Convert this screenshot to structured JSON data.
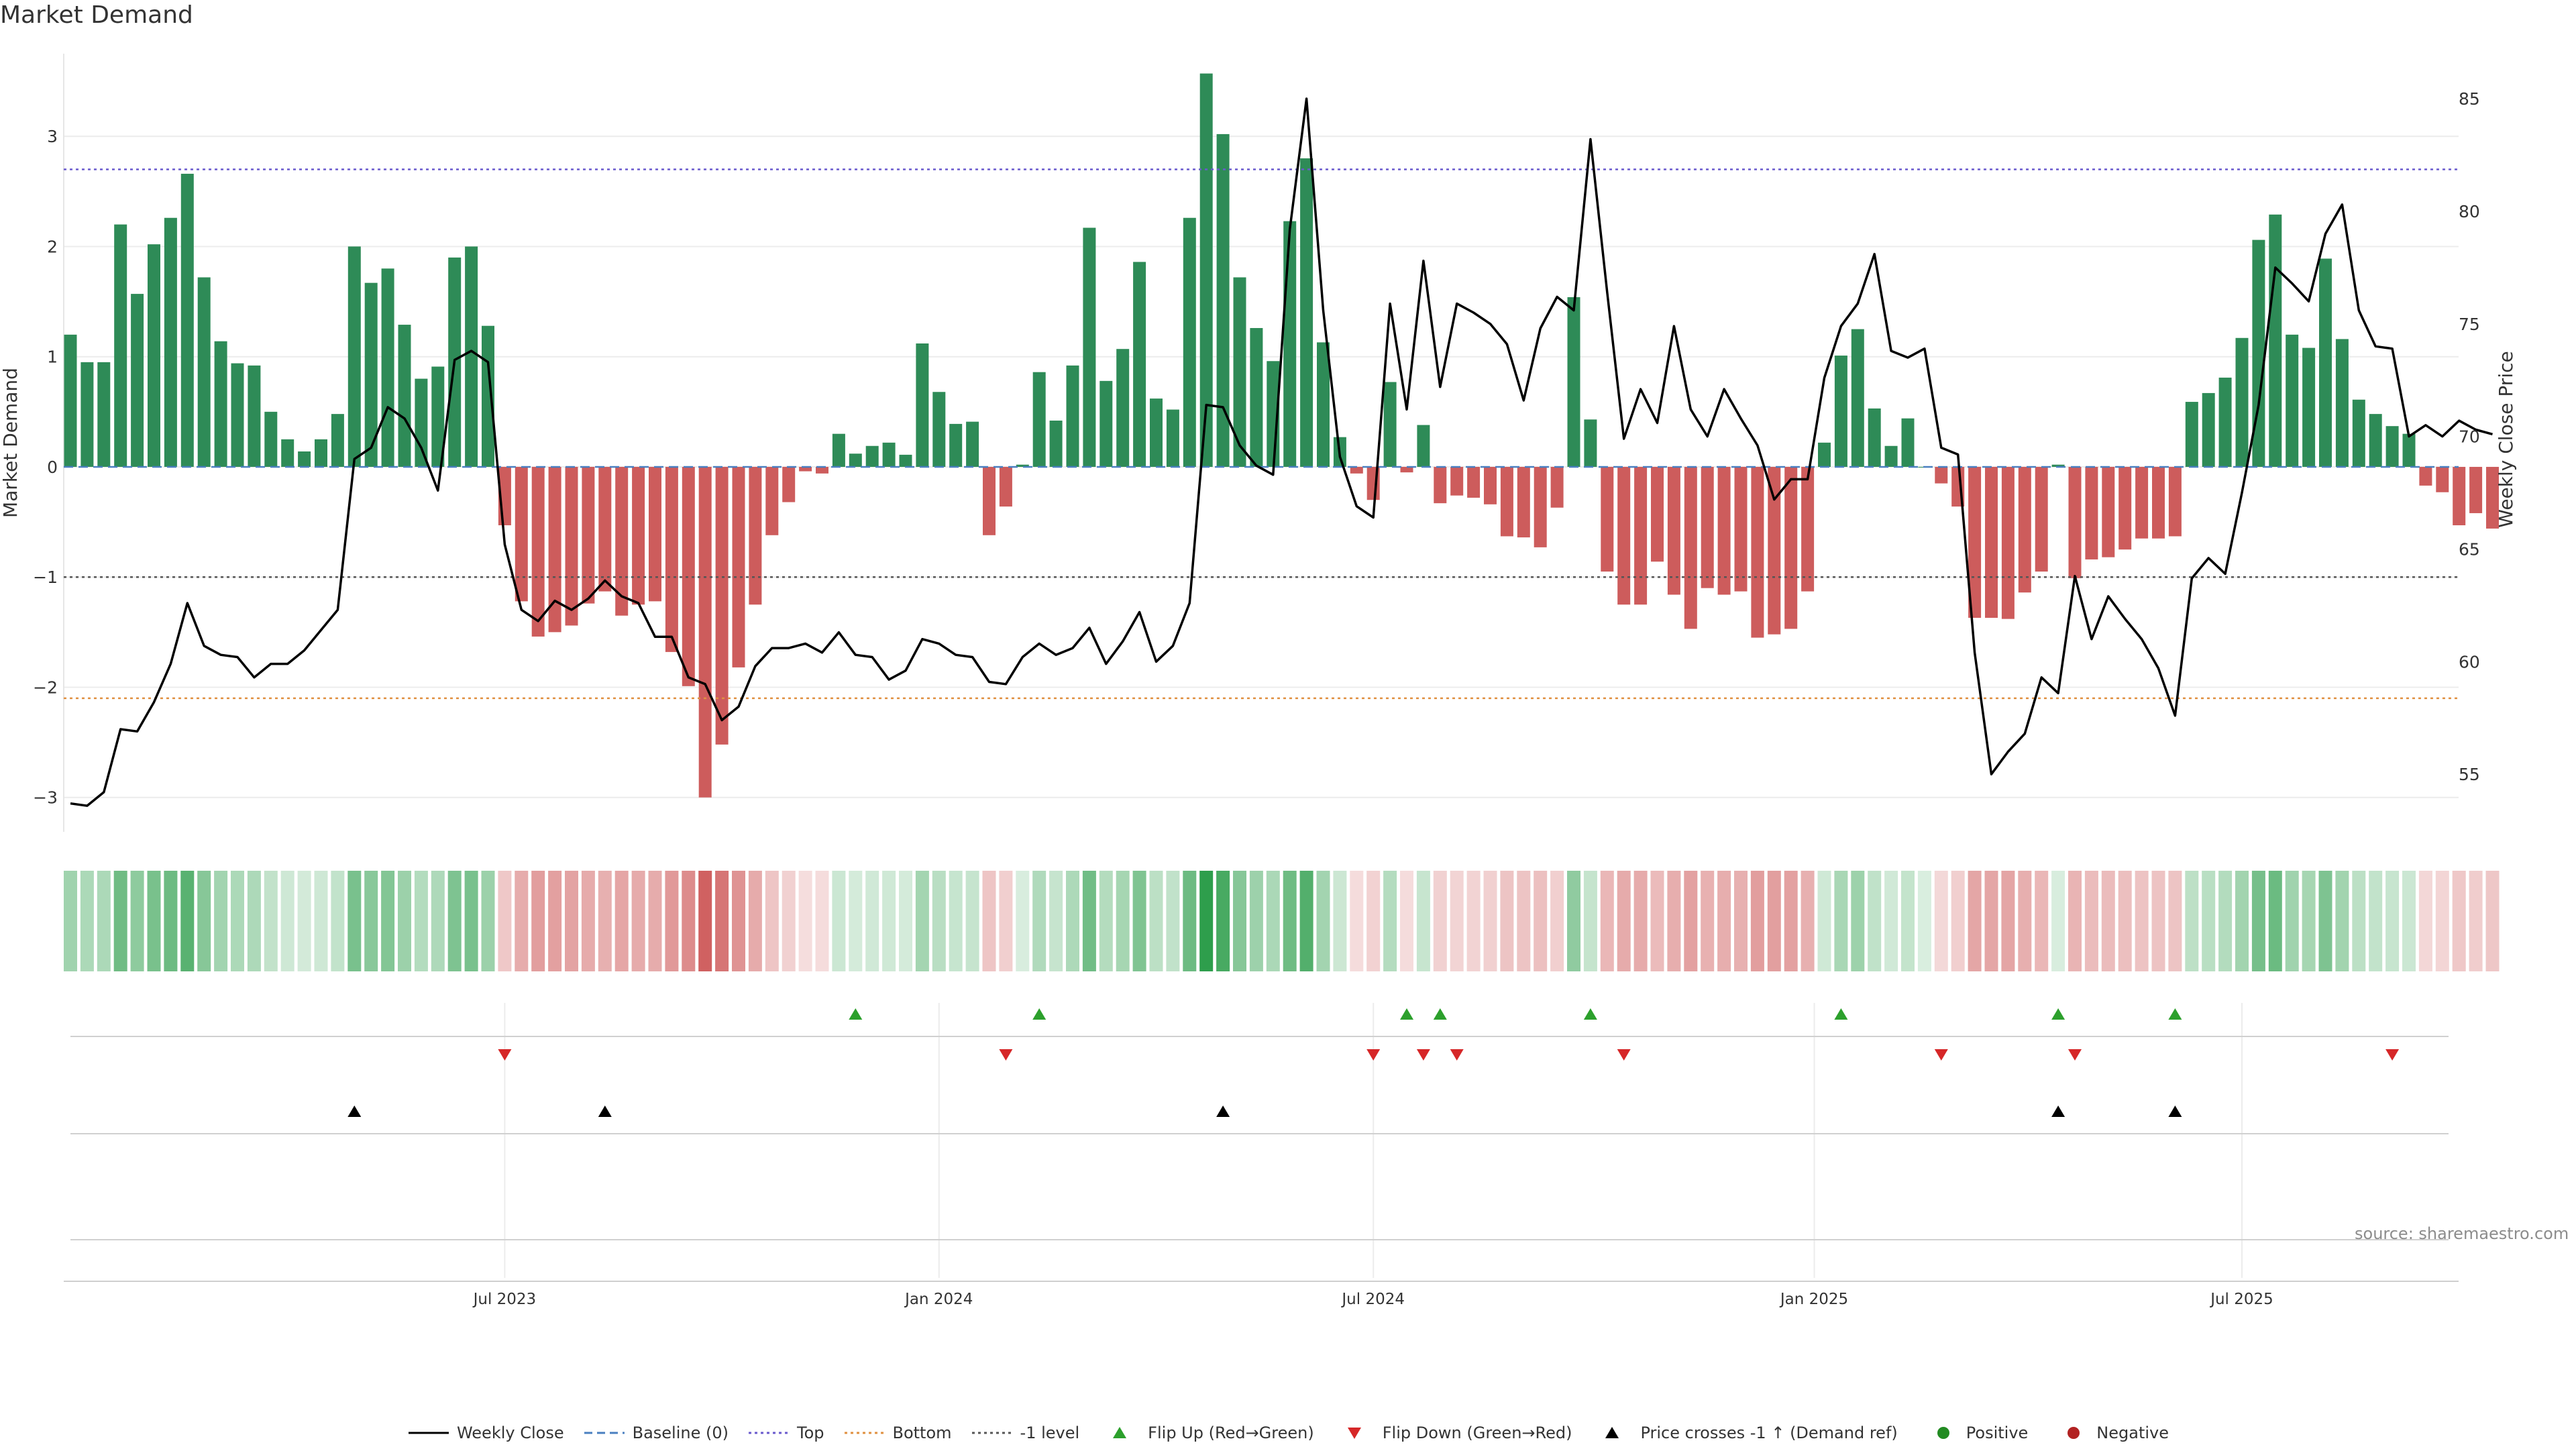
{
  "title": "Market Demand",
  "source": "source: sharemaestro.com",
  "colors": {
    "positive": "#2e8b57",
    "negative": "#cd5c5c",
    "price": "#000000",
    "top": "#6a5acd",
    "bottom": "#e09040",
    "minus_one": "#555555",
    "baseline": "#4a7fc0",
    "flip_up": "#2ca02c",
    "flip_down": "#d62728",
    "cross": "#000000",
    "heat_pos": "#2e9e4c",
    "heat_neg": "#c94a4a"
  },
  "legend": [
    {
      "label": "Weekly Close",
      "kind": "line-solid"
    },
    {
      "label": "Baseline (0)",
      "kind": "line-dash"
    },
    {
      "label": "Top",
      "kind": "line-dot-top"
    },
    {
      "label": "Bottom",
      "kind": "line-dot-bottom"
    },
    {
      "label": "-1 level",
      "kind": "line-dot-minus"
    },
    {
      "label": "Flip Up (Red→Green)",
      "kind": "tri-up-green"
    },
    {
      "label": "Flip Down (Green→Red)",
      "kind": "tri-down-red"
    },
    {
      "label": "Price crosses -1 ↑ (Demand ref)",
      "kind": "tri-up-black"
    },
    {
      "label": "Positive",
      "kind": "dot-green"
    },
    {
      "label": "Negative",
      "kind": "dot-red"
    }
  ],
  "chart_data": {
    "type": "bar",
    "title": "Market Demand",
    "xlabel": "",
    "ylabel": "Market Demand",
    "y2label": "Weekly Close Price",
    "ylim": [
      -3.3,
      3.75
    ],
    "y2lim": [
      52.5,
      87
    ],
    "yticks": [
      -3,
      -2,
      -1,
      0,
      1,
      2,
      3
    ],
    "yticklabels": [
      "−3",
      "−2",
      "−1",
      "0",
      "1",
      "2",
      "3"
    ],
    "y2ticks": [
      55,
      60,
      65,
      70,
      75,
      80,
      85
    ],
    "x_date_start": "2023-01-02",
    "x_ticks": [
      {
        "label": "Jul 2023",
        "week": 26
      },
      {
        "label": "Jan 2024",
        "week": 52
      },
      {
        "label": "Jul 2024",
        "week": 78
      },
      {
        "label": "Jan 2025",
        "week": 104.4
      },
      {
        "label": "Jul 2025",
        "week": 130
      }
    ],
    "levels": {
      "top": 2.7,
      "bottom": -2.1,
      "minus_one": -1.0,
      "baseline": 0
    },
    "demand": [
      1.2,
      0.95,
      0.95,
      2.2,
      1.57,
      2.02,
      2.26,
      2.66,
      1.72,
      1.14,
      0.94,
      0.92,
      0.5,
      0.25,
      0.14,
      0.25,
      0.48,
      2.0,
      1.67,
      1.8,
      1.29,
      0.8,
      0.91,
      1.9,
      2.0,
      1.28,
      -0.53,
      -1.22,
      -1.54,
      -1.5,
      -1.44,
      -1.24,
      -1.13,
      -1.35,
      -1.25,
      -1.22,
      -1.68,
      -1.99,
      -3.0,
      -2.52,
      -1.82,
      -1.25,
      -0.62,
      -0.32,
      -0.04,
      -0.06,
      0.3,
      0.12,
      0.19,
      0.22,
      0.11,
      1.12,
      0.68,
      0.39,
      0.41,
      -0.62,
      -0.36,
      0.02,
      0.86,
      0.42,
      0.92,
      2.17,
      0.78,
      1.07,
      1.86,
      0.62,
      0.52,
      2.26,
      3.57,
      3.02,
      1.72,
      1.26,
      0.96,
      2.23,
      2.8,
      1.13,
      0.27,
      -0.06,
      -0.3,
      0.77,
      -0.05,
      0.38,
      -0.33,
      -0.26,
      -0.28,
      -0.34,
      -0.63,
      -0.64,
      -0.73,
      -0.37,
      1.54,
      0.43,
      -0.95,
      -1.25,
      -1.25,
      -0.86,
      -1.16,
      -1.47,
      -1.1,
      -1.16,
      -1.13,
      -1.55,
      -1.52,
      -1.47,
      -1.13,
      0.22,
      1.01,
      1.25,
      0.53,
      0.19,
      0.44,
      0.0,
      -0.15,
      -0.36,
      -1.37,
      -1.37,
      -1.38,
      -1.14,
      -0.95,
      0.02,
      -1.01,
      -0.84,
      -0.82,
      -0.75,
      -0.65,
      -0.65,
      -0.63,
      0.59,
      0.67,
      0.81,
      1.17,
      2.06,
      2.29,
      1.2,
      1.08,
      1.89,
      1.16,
      0.61,
      0.48,
      0.37,
      0.3,
      -0.17,
      -0.23,
      -0.53,
      -0.42,
      -0.56
    ],
    "weekly_close": [
      53.7,
      53.6,
      54.2,
      57.0,
      56.9,
      58.2,
      59.9,
      62.6,
      60.7,
      60.3,
      60.2,
      59.3,
      59.9,
      59.9,
      60.5,
      61.4,
      62.3,
      69.0,
      69.5,
      71.3,
      70.8,
      69.5,
      67.6,
      73.4,
      73.8,
      73.3,
      65.2,
      62.3,
      61.8,
      62.7,
      62.3,
      62.8,
      63.6,
      62.9,
      62.6,
      61.1,
      61.1,
      59.3,
      59.0,
      57.4,
      58.0,
      59.8,
      60.6,
      60.6,
      60.8,
      60.4,
      61.3,
      60.3,
      60.2,
      59.2,
      59.6,
      61.0,
      60.8,
      60.3,
      60.2,
      59.1,
      59.0,
      60.2,
      60.8,
      60.3,
      60.6,
      61.5,
      59.9,
      60.9,
      62.2,
      60.0,
      60.7,
      62.6,
      71.4,
      71.3,
      69.6,
      68.7,
      68.3,
      79.2,
      85.0,
      75.6,
      69.1,
      66.9,
      66.4,
      75.9,
      71.2,
      77.8,
      72.2,
      75.9,
      75.5,
      75.0,
      74.1,
      71.6,
      74.8,
      76.2,
      75.6,
      83.2,
      76.4,
      69.9,
      72.1,
      70.6,
      74.9,
      71.2,
      70.0,
      72.1,
      70.8,
      69.6,
      67.2,
      68.1,
      68.1,
      72.6,
      74.9,
      75.9,
      78.1,
      73.8,
      73.5,
      73.9,
      69.5,
      69.2,
      60.4,
      55.0,
      56.0,
      56.8,
      59.3,
      58.6,
      63.8,
      61.0,
      62.9,
      61.9,
      61.0,
      59.7,
      57.6,
      63.7,
      64.6,
      63.9,
      67.5,
      71.4,
      77.5,
      76.8,
      76.0,
      79.0,
      80.3,
      75.6,
      74.0,
      73.9,
      70.0,
      70.5,
      70.0,
      70.7,
      70.3,
      70.1
    ],
    "flip_up_weeks": [
      47,
      58,
      80,
      82,
      91,
      106,
      119,
      126
    ],
    "flip_down_weeks": [
      26,
      56,
      78,
      81,
      83,
      93,
      112,
      120,
      139
    ],
    "cross_up_weeks": [
      17,
      32,
      69,
      119,
      126
    ]
  }
}
